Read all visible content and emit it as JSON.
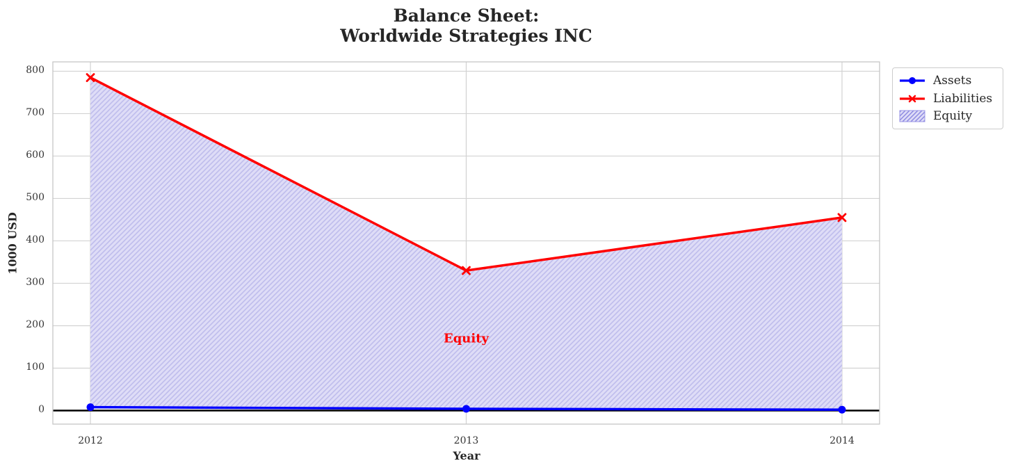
{
  "title": {
    "line1": "Balance Sheet:",
    "line2": "Worldwide Strategies INC"
  },
  "chart_data": {
    "type": "line",
    "x": [
      2012,
      2013,
      2014
    ],
    "series": [
      {
        "name": "Assets",
        "values": [
          8,
          4,
          2
        ],
        "color": "#0000ff",
        "marker": "circle"
      },
      {
        "name": "Liabilities",
        "values": [
          785,
          330,
          455
        ],
        "color": "#ff0000",
        "marker": "x"
      }
    ],
    "equity_fill": {
      "name": "Equity",
      "between": [
        "Assets",
        "Liabilities"
      ],
      "facecolor": "#dedcf7",
      "hatch_color": "#bfbdec",
      "hatch": "//"
    },
    "annotation": {
      "text": "Equity",
      "x": 2013,
      "y": 170,
      "color": "#ff0000"
    },
    "xlabel": "Year",
    "ylabel": "1000 USD",
    "xticks": [
      "2012",
      "2013",
      "2014"
    ],
    "xtick_values": [
      2012,
      2013,
      2014
    ],
    "yticks": [
      0,
      100,
      200,
      300,
      400,
      500,
      600,
      700,
      800
    ],
    "xlim": [
      2011.9,
      2014.1
    ],
    "ylim": [
      -32,
      822
    ],
    "grid": true,
    "grid_color": "#d2d2d2",
    "spine_color": "#c7c7c7",
    "zero_line_color": "#000000",
    "legend": {
      "position": "outside-top-right",
      "entries": [
        "Assets",
        "Liabilities",
        "Equity"
      ]
    }
  }
}
